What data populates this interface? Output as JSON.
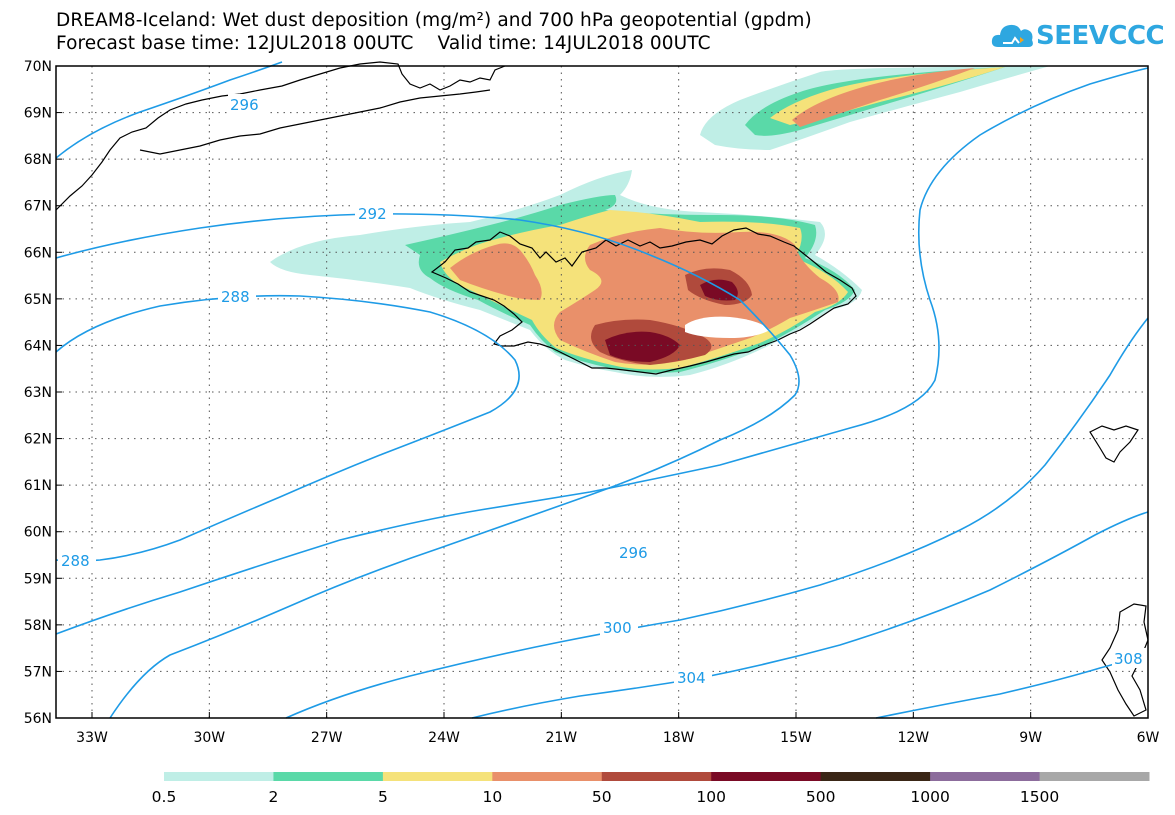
{
  "title_line1": "DREAM8-Iceland: Wet dust deposition (mg/m²) and 700 hPa geopotential (gpdm)",
  "title_line2": "Forecast base time: 12JUL2018 00UTC    Valid time: 14JUL2018 00UTC",
  "logo_text": "SEEVCCC",
  "lat_labels": [
    "70N",
    "69N",
    "68N",
    "67N",
    "66N",
    "65N",
    "64N",
    "63N",
    "62N",
    "61N",
    "60N",
    "59N",
    "58N",
    "57N",
    "56N"
  ],
  "lon_labels": [
    "33W",
    "30W",
    "27W",
    "24W",
    "21W",
    "18W",
    "15W",
    "12W",
    "9W",
    "6W"
  ],
  "contour_labels": {
    "c296_top": "296",
    "c292": "292",
    "c288_mid": "288",
    "c288_left": "288",
    "c296_mid": "296",
    "c300": "300",
    "c304": "304",
    "c308": "308"
  },
  "legend": {
    "labels": [
      "0.5",
      "2",
      "5",
      "10",
      "50",
      "100",
      "500",
      "1000",
      "1500"
    ],
    "colors": [
      "#bfeee6",
      "#5ad9a8",
      "#f5e27a",
      "#e9906a",
      "#b04a3c",
      "#7a0a25",
      "#3a2616",
      "#8c6c9c",
      "#a8a8a8"
    ]
  },
  "colors": {
    "contour": "#1e9be6",
    "coast": "#000000",
    "logo": "#2ea7e0"
  }
}
